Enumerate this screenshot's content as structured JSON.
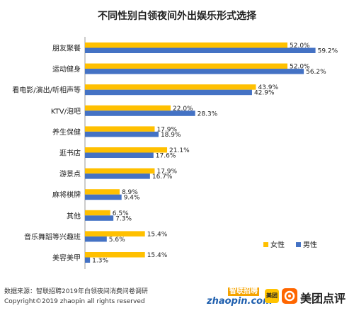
{
  "chart_data": {
    "type": "bar",
    "orientation": "horizontal",
    "title": "不同性别白领夜间外出娱乐形式选择",
    "categories": [
      "朋友聚餐",
      "运动健身",
      "看电影/演出/听相声等",
      "KTV/泡吧",
      "养生保健",
      "逛书店",
      "游景点",
      "麻将棋牌",
      "其他",
      "音乐舞蹈等兴趣班",
      "美容美甲"
    ],
    "series": [
      {
        "name": "女性",
        "color": "#FFC000",
        "values": [
          52.0,
          52.0,
          43.9,
          22.0,
          17.9,
          21.1,
          17.9,
          8.9,
          6.5,
          15.4,
          15.4
        ],
        "labels": [
          "52.0%",
          "52.0%",
          "43.9%",
          "22.0%",
          "17.9%",
          "21.1%",
          "17.9%",
          "8.9%",
          "6.5%",
          "15.4%",
          "15.4%"
        ]
      },
      {
        "name": "男性",
        "color": "#4472C4",
        "values": [
          59.2,
          56.2,
          42.9,
          28.3,
          18.9,
          17.6,
          16.7,
          9.4,
          7.3,
          5.6,
          1.3
        ],
        "labels": [
          "59.2%",
          "56.2%",
          "42.9%",
          "28.3%",
          "18.9%",
          "17.6%",
          "16.7%",
          "9.4%",
          "7.3%",
          "5.6%",
          "1.3%"
        ]
      }
    ],
    "unit": "%",
    "xlim": [
      0,
      60
    ],
    "grid": false,
    "legend_position": "bottom-right"
  },
  "footer": {
    "source": "数据来源：智联招聘2019年白领夜间消费问卷调研",
    "copyright": "Copyright©2019 zhaopin all rights reserved"
  },
  "brands": {
    "zhilian_cn": "智联招聘",
    "zhilian_url": "zhaopin.com",
    "meituan": "美团",
    "meituan_dianping": "美团点评"
  }
}
